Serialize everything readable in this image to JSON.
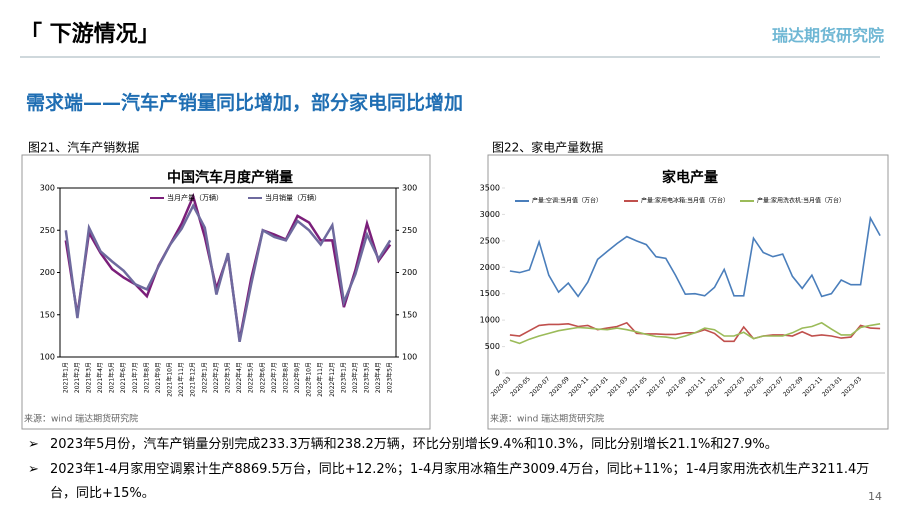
{
  "header": {
    "title": "「 下游情况」",
    "logo": "瑞达期货研究院"
  },
  "subtitle": "需求端——汽车产销量同比增加，部分家电同比增加",
  "chart_data": [
    {
      "type": "line",
      "caption": "图21、汽车产销数据",
      "title": "中国汽车月度产销量",
      "source": "来源：wind   瑞达期货研究院",
      "categories": [
        "2021年1月",
        "2021年2月",
        "2021年3月",
        "2021年4月",
        "2021年5月",
        "2021年6月",
        "2021年7月",
        "2021年8月",
        "2021年9月",
        "2021年10月",
        "2021年11月",
        "2021年12月",
        "2022年1月",
        "2022年2月",
        "2022年3月",
        "2022年4月",
        "2022年5月",
        "2022年6月",
        "2022年7月",
        "2022年8月",
        "2022年9月",
        "2022年10月",
        "2022年11月",
        "2022年12月",
        "2023年1月",
        "2023年2月",
        "2023年3月",
        "2023年4月",
        "2023年5月"
      ],
      "series": [
        {
          "name": "当月产量（万辆）",
          "color": "#7b1f7a",
          "values": [
            238,
            150,
            247,
            223,
            204,
            194,
            186,
            172,
            208,
            233,
            258,
            290,
            242,
            181,
            221,
            120,
            193,
            250,
            245,
            239,
            267,
            259,
            238,
            238,
            159,
            203,
            258,
            214,
            233
          ]
        },
        {
          "name": "当月销量（万辆）",
          "color": "#6e6a9e",
          "values": [
            250,
            146,
            253,
            225,
            213,
            202,
            186,
            180,
            207,
            233,
            252,
            279,
            253,
            174,
            223,
            118,
            186,
            250,
            242,
            238,
            261,
            250,
            233,
            256,
            165,
            198,
            245,
            216,
            238
          ]
        }
      ],
      "ylim": [
        100,
        300
      ],
      "yticks": [
        100,
        150,
        200,
        250,
        300
      ],
      "y2lim": [
        100,
        300
      ],
      "y2ticks": [
        100,
        150,
        200,
        250,
        300
      ]
    },
    {
      "type": "line",
      "caption": "图22、家电产量数据",
      "title": "家电产量",
      "source": "来源：wind   瑞达期货研究院",
      "categories": [
        "2020-03",
        null,
        "2020-05",
        null,
        "2020-07",
        null,
        "2020-09",
        null,
        "2020-11",
        null,
        "2021-01",
        null,
        "2021-03",
        null,
        "2021-05",
        null,
        "2021-07",
        null,
        "2021-09",
        null,
        "2021-11",
        null,
        "2022-01",
        null,
        "2022-03",
        null,
        "2022-05",
        null,
        "2022-07",
        null,
        "2022-09",
        null,
        "2022-11",
        null,
        "2023-01",
        null,
        "2023-03",
        null,
        null
      ],
      "series": [
        {
          "name": "产量:空调:当月值（万台）",
          "color": "#4a7ebb",
          "values": [
            1930,
            1900,
            1950,
            2480,
            1850,
            1530,
            1700,
            1450,
            1720,
            2150,
            2300,
            2450,
            2580,
            2500,
            2430,
            2200,
            2170,
            1850,
            1490,
            1500,
            1460,
            1620,
            1960,
            1460,
            1460,
            2550,
            2280,
            2200,
            2250,
            1830,
            1600,
            1850,
            1450,
            1500,
            1760,
            1670,
            1670,
            2930,
            2600
          ]
        },
        {
          "name": "产量:家用电冰箱:当月值（万台）",
          "color": "#c0504d",
          "values": [
            720,
            700,
            800,
            900,
            920,
            920,
            930,
            880,
            900,
            820,
            850,
            880,
            950,
            750,
            740,
            740,
            730,
            730,
            760,
            760,
            820,
            750,
            600,
            600,
            870,
            650,
            700,
            720,
            720,
            700,
            780,
            700,
            720,
            700,
            660,
            680,
            900,
            850,
            840
          ]
        },
        {
          "name": "产量:家用洗衣机:当月值（万台）",
          "color": "#9bbb59",
          "values": [
            620,
            560,
            640,
            700,
            750,
            800,
            830,
            860,
            850,
            830,
            820,
            850,
            820,
            780,
            730,
            690,
            680,
            650,
            700,
            760,
            850,
            820,
            700,
            700,
            770,
            650,
            700,
            700,
            700,
            760,
            850,
            880,
            950,
            830,
            720,
            720,
            860,
            900,
            930
          ]
        }
      ],
      "ylim": [
        0,
        3500
      ],
      "yticks": [
        0,
        500,
        1000,
        1500,
        2000,
        2500,
        3000,
        3500
      ]
    }
  ],
  "bullets": [
    "2023年5月份，汽车产销量分别完成233.3万辆和238.2万辆，环比分别增长9.4%和10.3%，同比分别增长21.1%和27.9%。",
    "2023年1-4月家用空调累计生产8869.5万台，同比+12.2%；1-4月家用冰箱生产3009.4万台，同比+11%；1-4月家用洗衣机生产3211.4万台，同比+15%。"
  ],
  "page_number": "14"
}
